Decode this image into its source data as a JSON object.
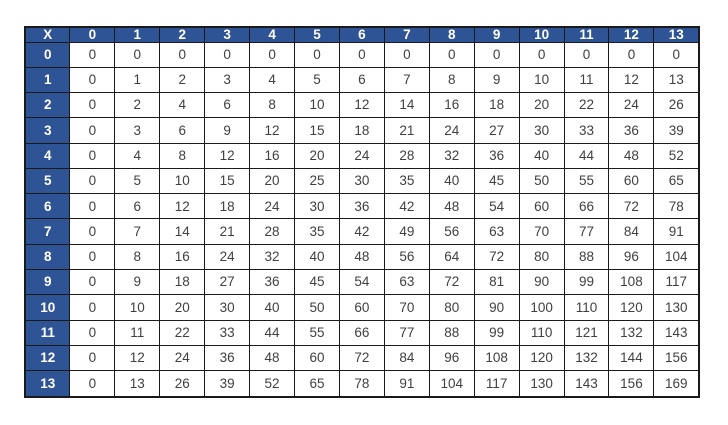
{
  "chart_data": {
    "type": "table",
    "corner_label": "X",
    "column_headers": [
      "0",
      "1",
      "2",
      "3",
      "4",
      "5",
      "6",
      "7",
      "8",
      "9",
      "10",
      "11",
      "12",
      "13"
    ],
    "row_headers": [
      "0",
      "1",
      "2",
      "3",
      "4",
      "5",
      "6",
      "7",
      "8",
      "9",
      "10",
      "11",
      "12",
      "13"
    ],
    "rows": [
      [
        0,
        0,
        0,
        0,
        0,
        0,
        0,
        0,
        0,
        0,
        0,
        0,
        0,
        0
      ],
      [
        0,
        1,
        2,
        3,
        4,
        5,
        6,
        7,
        8,
        9,
        10,
        11,
        12,
        13
      ],
      [
        0,
        2,
        4,
        6,
        8,
        10,
        12,
        14,
        16,
        18,
        20,
        22,
        24,
        26
      ],
      [
        0,
        3,
        6,
        9,
        12,
        15,
        18,
        21,
        24,
        27,
        30,
        33,
        36,
        39
      ],
      [
        0,
        4,
        8,
        12,
        16,
        20,
        24,
        28,
        32,
        36,
        40,
        44,
        48,
        52
      ],
      [
        0,
        5,
        10,
        15,
        20,
        25,
        30,
        35,
        40,
        45,
        50,
        55,
        60,
        65
      ],
      [
        0,
        6,
        12,
        18,
        24,
        30,
        36,
        42,
        48,
        54,
        60,
        66,
        72,
        78
      ],
      [
        0,
        7,
        14,
        21,
        28,
        35,
        42,
        49,
        56,
        63,
        70,
        77,
        84,
        91
      ],
      [
        0,
        8,
        16,
        24,
        32,
        40,
        48,
        56,
        64,
        72,
        80,
        88,
        96,
        104
      ],
      [
        0,
        9,
        18,
        27,
        36,
        45,
        54,
        63,
        72,
        81,
        90,
        99,
        108,
        117
      ],
      [
        0,
        10,
        20,
        30,
        40,
        50,
        60,
        70,
        80,
        90,
        100,
        110,
        120,
        130
      ],
      [
        0,
        11,
        22,
        33,
        44,
        55,
        66,
        77,
        88,
        99,
        110,
        121,
        132,
        143
      ],
      [
        0,
        12,
        24,
        36,
        48,
        60,
        72,
        84,
        96,
        108,
        120,
        132,
        144,
        156
      ],
      [
        0,
        13,
        26,
        39,
        52,
        65,
        78,
        91,
        104,
        117,
        130,
        143,
        156,
        169
      ]
    ]
  },
  "colors": {
    "header_bg": "#2F5496",
    "header_text": "#FFFFFF",
    "body_text": "#404040",
    "grid_border": "#1A1A1A",
    "background": "#FFFFFF"
  }
}
